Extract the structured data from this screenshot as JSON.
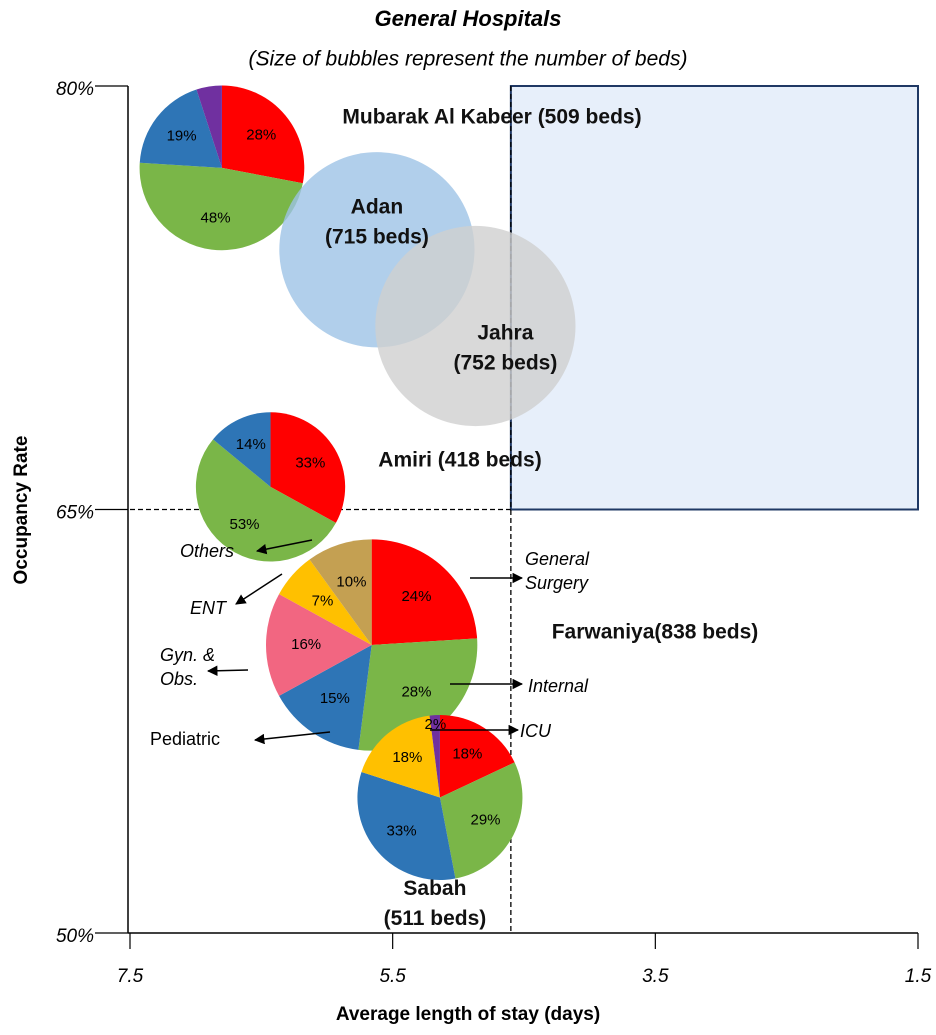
{
  "chart_data": {
    "type": "bubble-pie",
    "title": "General Hospitals",
    "subtitle": "(Size of bubbles represent the number of beds)",
    "xlabel": "Average length of stay (days)",
    "ylabel": "Occupancy Rate",
    "xlim": [
      7.5,
      1.5
    ],
    "xticks": [
      7.5,
      5.5,
      3.5,
      1.5
    ],
    "ylim": [
      50,
      80
    ],
    "yticks": [
      {
        "value": 50,
        "label": "50%"
      },
      {
        "value": 65,
        "label": "65%"
      },
      {
        "value": 80,
        "label": "80%"
      }
    ],
    "reference_x": 4.6,
    "reference_y": 65,
    "highlight_color": "#e7effa",
    "series": [
      {
        "label": [
          "Mubarak Al Kabeer (509 beds)"
        ],
        "x": 6.8,
        "y": 77.1,
        "size": 509,
        "pie": {
          "values": [
            28,
            48,
            19,
            5
          ],
          "value_labels": [
            "28%",
            "48%",
            "19%",
            null
          ],
          "colors": [
            "#ff0000",
            "#7ab648",
            "#2e75b6",
            "#7030a0"
          ]
        }
      },
      {
        "label": [
          "Adan",
          "(715 beds)"
        ],
        "x": 5.62,
        "y": 74.2,
        "size": 715,
        "color": "#9dc3e6"
      },
      {
        "label": [
          "Jahra",
          "(752 beds)"
        ],
        "x": 4.87,
        "y": 71.5,
        "size": 752,
        "color": "#d0d0d0"
      },
      {
        "label": [
          "Amiri (418 beds)"
        ],
        "x": 6.43,
        "y": 65.8,
        "size": 418,
        "pie": {
          "values": [
            33,
            53,
            14
          ],
          "value_labels": [
            "33%",
            "53%",
            "14%"
          ],
          "colors": [
            "#ff0000",
            "#7ab648",
            "#2e75b6"
          ]
        }
      },
      {
        "label": [
          "Farwaniya(838 beds)"
        ],
        "x": 5.66,
        "y": 60.2,
        "size": 838,
        "pie": {
          "values": [
            24,
            28,
            15,
            16,
            7,
            10
          ],
          "value_labels": [
            "24%",
            "28%",
            "15%",
            "16%",
            "7%",
            "10%"
          ],
          "colors": [
            "#ff0000",
            "#7ab648",
            "#2e75b6",
            "#f26681",
            "#ffc000",
            "#c4a052"
          ]
        }
      },
      {
        "label": [
          "Sabah",
          "(511 beds)"
        ],
        "x": 5.14,
        "y": 54.8,
        "size": 511,
        "pie": {
          "values": [
            18,
            29,
            33,
            18,
            2
          ],
          "value_labels": [
            "18%",
            "29%",
            "33%",
            "18%",
            "2%"
          ],
          "colors": [
            "#ff0000",
            "#7ab648",
            "#2e75b6",
            "#ffc000",
            "#7030a0"
          ]
        }
      }
    ],
    "categories": [
      {
        "name": [
          "General",
          "Surgery"
        ]
      },
      {
        "name": [
          "Internal"
        ]
      },
      {
        "name": [
          "ICU"
        ]
      },
      {
        "name": [
          "Pediatric"
        ]
      },
      {
        "name": [
          "Gyn. &",
          "Obs."
        ]
      },
      {
        "name": [
          "ENT"
        ]
      },
      {
        "name": [
          "Others"
        ]
      }
    ]
  }
}
